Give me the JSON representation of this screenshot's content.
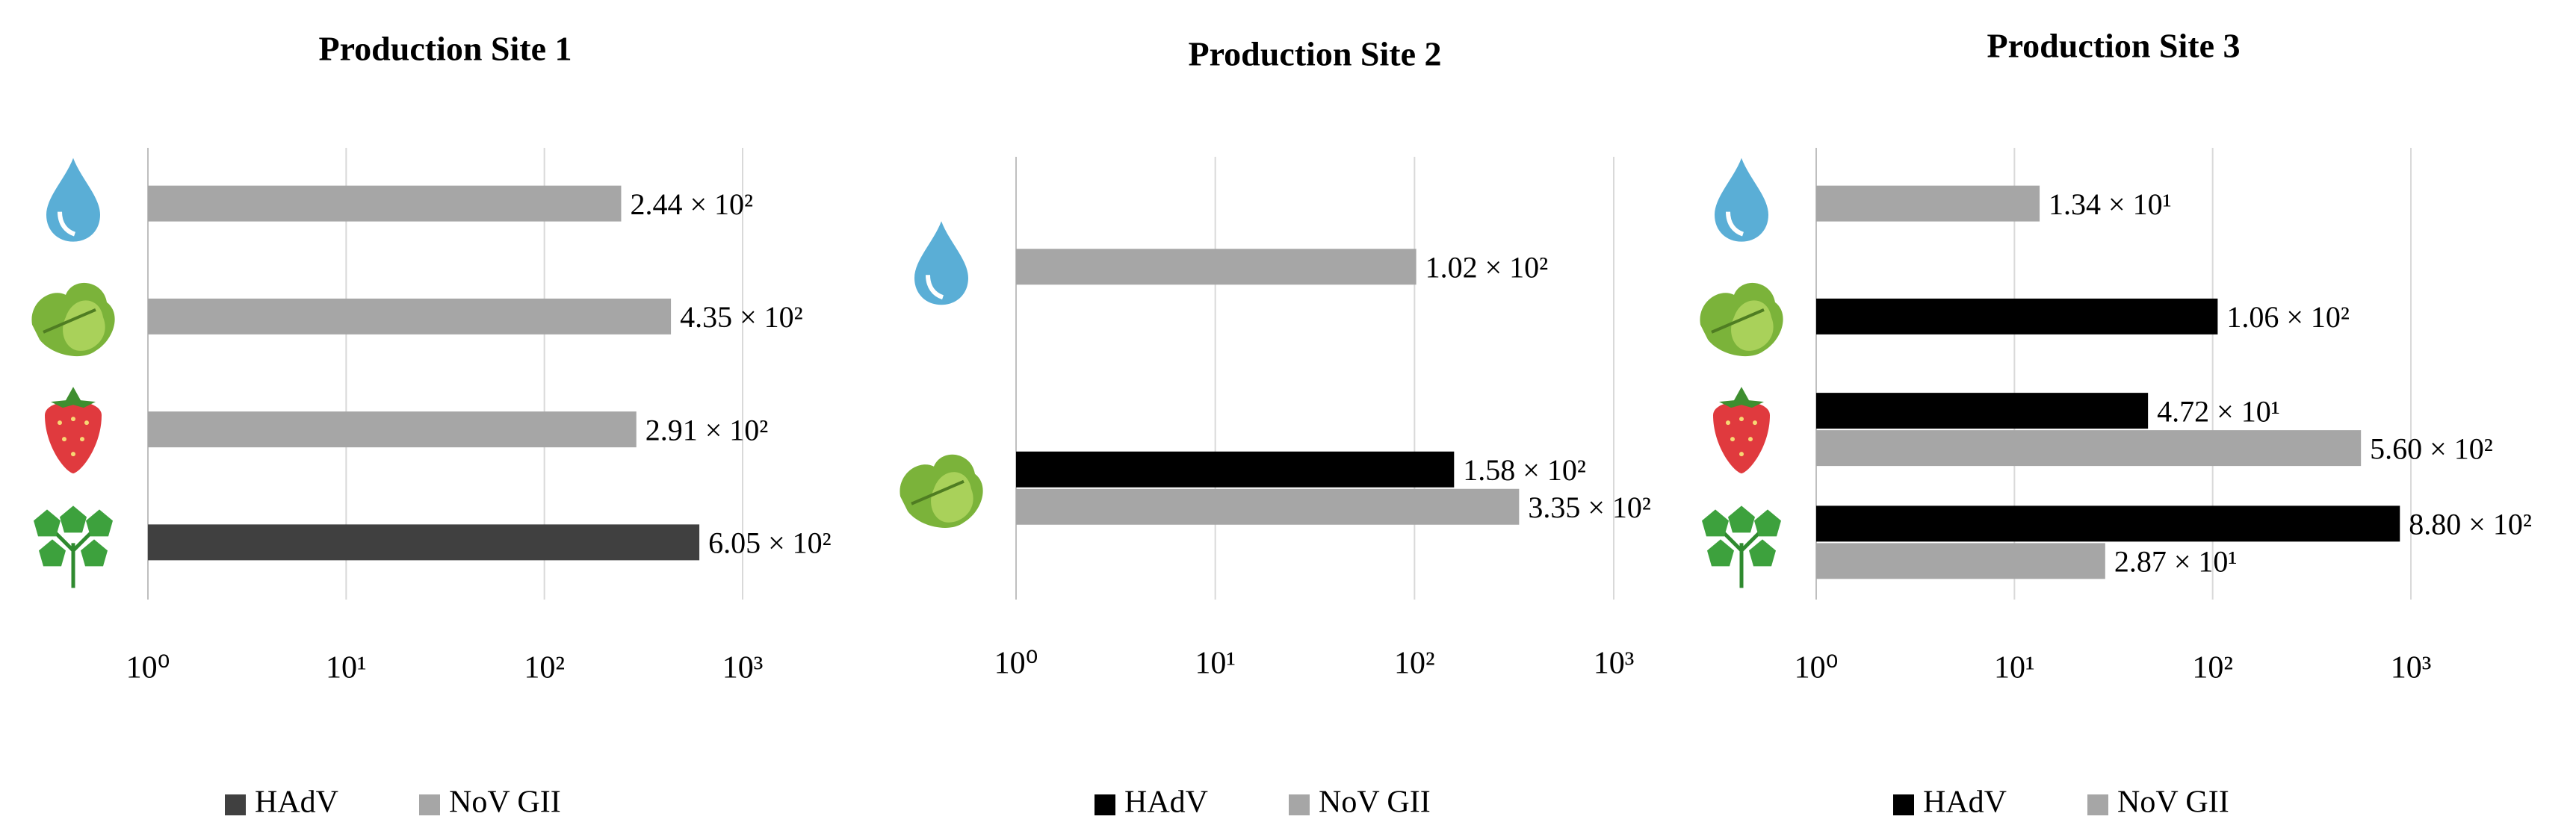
{
  "chart_data": [
    {
      "type": "bar",
      "orientation": "horizontal",
      "title": "Production Site 1",
      "categories": [
        null,
        null,
        null,
        null
      ],
      "series": [
        {
          "name": "HAdV",
          "color": "#404040",
          "values": [
            null,
            null,
            null,
            605
          ],
          "value_labels": [
            null,
            null,
            null,
            "6.05 × 10²"
          ]
        },
        {
          "name": "NoV GII",
          "color": "#a6a6a6",
          "values": [
            244,
            435,
            291,
            null
          ],
          "value_labels": [
            "2.44 × 10²",
            "4.35 × 10²",
            "2.91 × 10²",
            null
          ]
        }
      ],
      "xscale": "log",
      "xlim": [
        1,
        1000
      ],
      "xticks": [
        {
          "value": 1,
          "label": "10⁰"
        },
        {
          "value": 10,
          "label": "10¹"
        },
        {
          "value": 100,
          "label": "10²"
        },
        {
          "value": 1000,
          "label": "10³"
        }
      ],
      "grid": true,
      "legend": "bottom"
    },
    {
      "type": "bar",
      "orientation": "horizontal",
      "title": "Production Site 2",
      "categories": [
        null,
        null
      ],
      "series": [
        {
          "name": "HAdV",
          "color": "#000000",
          "values": [
            null,
            158
          ],
          "value_labels": [
            null,
            "1.58 × 10²"
          ]
        },
        {
          "name": "NoV GII",
          "color": "#a6a6a6",
          "values": [
            102,
            335
          ],
          "value_labels": [
            "1.02 × 10²",
            "3.35 × 10²"
          ]
        }
      ],
      "xscale": "log",
      "xlim": [
        1,
        1000
      ],
      "xticks": [
        {
          "value": 1,
          "label": "10⁰"
        },
        {
          "value": 10,
          "label": "10¹"
        },
        {
          "value": 100,
          "label": "10²"
        },
        {
          "value": 1000,
          "label": "10³"
        }
      ],
      "grid": true,
      "legend": "bottom"
    },
    {
      "type": "bar",
      "orientation": "horizontal",
      "title": "Production Site 3",
      "categories": [
        null,
        null,
        null,
        null
      ],
      "series": [
        {
          "name": "HAdV",
          "color": "#000000",
          "values": [
            null,
            106,
            47.2,
            880
          ],
          "value_labels": [
            null,
            "1.06 × 10²",
            "4.72 × 10¹",
            "8.80 × 10²"
          ]
        },
        {
          "name": "NoV GII",
          "color": "#a6a6a6",
          "values": [
            13.4,
            null,
            560,
            28.7
          ],
          "value_labels": [
            "1.34 × 10¹",
            null,
            "5.60 × 10²",
            "2.87 × 10¹"
          ]
        }
      ],
      "xscale": "log",
      "xlim": [
        1,
        1000
      ],
      "xticks": [
        {
          "value": 1,
          "label": "10⁰"
        },
        {
          "value": 10,
          "label": "10¹"
        },
        {
          "value": 100,
          "label": "10²"
        },
        {
          "value": 1000,
          "label": "10³"
        }
      ],
      "grid": true,
      "legend": "bottom"
    }
  ]
}
